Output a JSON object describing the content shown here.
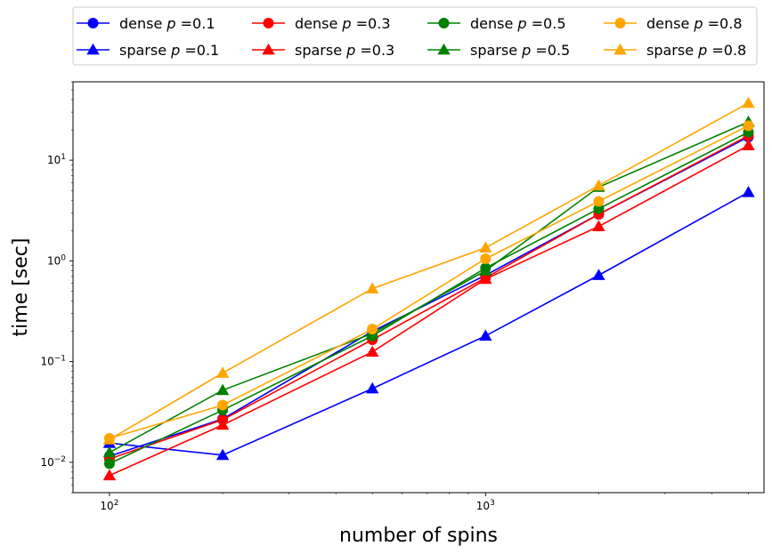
{
  "chart_data": {
    "type": "line",
    "xlabel": "number of spins",
    "ylabel": "time [sec]",
    "x_scale": "log",
    "y_scale": "log",
    "xlim": [
      80,
      5500
    ],
    "ylim": [
      0.005,
      60
    ],
    "x_ticks": [
      {
        "value": 100,
        "base": "10",
        "exp": "2"
      },
      {
        "value": 1000,
        "base": "10",
        "exp": "3"
      }
    ],
    "y_ticks": [
      {
        "value": 0.01,
        "base": "10",
        "exp": "−2"
      },
      {
        "value": 0.1,
        "base": "10",
        "exp": "−1"
      },
      {
        "value": 1,
        "base": "10",
        "exp": "0"
      },
      {
        "value": 10,
        "base": "10",
        "exp": "1"
      }
    ],
    "grid": false,
    "legend_position": "top, above plot, 4 columns",
    "x": [
      100,
      200,
      500,
      1000,
      2000,
      5000
    ],
    "series": [
      {
        "name": "dense p =0.1",
        "kind": "dense",
        "p": "0.1",
        "color": "#0000ff",
        "marker": "circle",
        "values": [
          0.0115,
          0.027,
          0.2,
          0.72,
          2.9,
          17
        ]
      },
      {
        "name": "sparse p =0.1",
        "kind": "sparse",
        "p": "0.1",
        "color": "#0000ff",
        "marker": "triangle",
        "values": [
          0.0155,
          0.0118,
          0.054,
          0.18,
          0.72,
          4.8
        ]
      },
      {
        "name": "dense p =0.3",
        "kind": "dense",
        "p": "0.3",
        "color": "#ff0000",
        "marker": "circle",
        "values": [
          0.0108,
          0.0265,
          0.165,
          0.68,
          2.9,
          17.5
        ]
      },
      {
        "name": "sparse p =0.3",
        "kind": "sparse",
        "p": "0.3",
        "color": "#ff0000",
        "marker": "triangle",
        "values": [
          0.0074,
          0.0235,
          0.125,
          0.66,
          2.2,
          14
        ]
      },
      {
        "name": "dense p =0.5",
        "kind": "dense",
        "p": "0.5",
        "color": "#008000",
        "marker": "circle",
        "values": [
          0.0097,
          0.033,
          0.18,
          0.85,
          3.3,
          19
        ]
      },
      {
        "name": "sparse p =0.5",
        "kind": "sparse",
        "p": "0.5",
        "color": "#008000",
        "marker": "triangle",
        "values": [
          0.0125,
          0.052,
          0.19,
          0.8,
          5.4,
          24
        ]
      },
      {
        "name": "dense p =0.8",
        "kind": "dense",
        "p": "0.8",
        "color": "#ffa500",
        "marker": "circle",
        "values": [
          0.0173,
          0.037,
          0.21,
          1.05,
          3.9,
          22
        ]
      },
      {
        "name": "sparse p =0.8",
        "kind": "sparse",
        "p": "0.8",
        "color": "#ffa500",
        "marker": "triangle",
        "values": [
          0.0168,
          0.077,
          0.53,
          1.35,
          5.6,
          37
        ]
      }
    ]
  }
}
